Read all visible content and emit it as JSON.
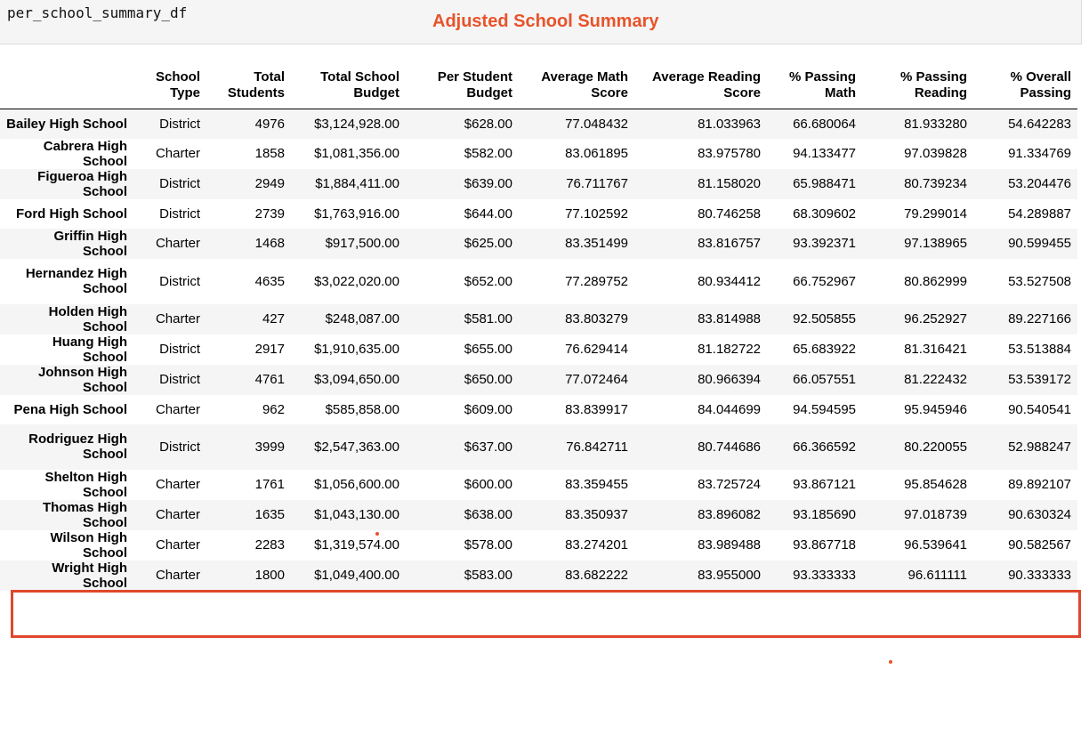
{
  "code": "per_school_summary_df",
  "annotation_title": "Adjusted School Summary",
  "accent_color": "#e0472c",
  "table": {
    "columns": [
      "",
      "School Type",
      "Total Students",
      "Total School Budget",
      "Per Student Budget",
      "Average Math Score",
      "Average Reading Score",
      "% Passing Math",
      "% Passing Reading",
      "% Overall Passing"
    ],
    "rows": [
      {
        "name": "Bailey High School",
        "cells": [
          "District",
          "4976",
          "$3,124,928.00",
          "$628.00",
          "77.048432",
          "81.033963",
          "66.680064",
          "81.933280",
          "54.642283"
        ]
      },
      {
        "name": "Cabrera High School",
        "cells": [
          "Charter",
          "1858",
          "$1,081,356.00",
          "$582.00",
          "83.061895",
          "83.975780",
          "94.133477",
          "97.039828",
          "91.334769"
        ]
      },
      {
        "name": "Figueroa High School",
        "cells": [
          "District",
          "2949",
          "$1,884,411.00",
          "$639.00",
          "76.711767",
          "81.158020",
          "65.988471",
          "80.739234",
          "53.204476"
        ]
      },
      {
        "name": "Ford High School",
        "cells": [
          "District",
          "2739",
          "$1,763,916.00",
          "$644.00",
          "77.102592",
          "80.746258",
          "68.309602",
          "79.299014",
          "54.289887"
        ]
      },
      {
        "name": "Griffin High School",
        "cells": [
          "Charter",
          "1468",
          "$917,500.00",
          "$625.00",
          "83.351499",
          "83.816757",
          "93.392371",
          "97.138965",
          "90.599455"
        ]
      },
      {
        "name": "Hernandez High School",
        "cells": [
          "District",
          "4635",
          "$3,022,020.00",
          "$652.00",
          "77.289752",
          "80.934412",
          "66.752967",
          "80.862999",
          "53.527508"
        ]
      },
      {
        "name": "Holden High School",
        "cells": [
          "Charter",
          "427",
          "$248,087.00",
          "$581.00",
          "83.803279",
          "83.814988",
          "92.505855",
          "96.252927",
          "89.227166"
        ]
      },
      {
        "name": "Huang High School",
        "cells": [
          "District",
          "2917",
          "$1,910,635.00",
          "$655.00",
          "76.629414",
          "81.182722",
          "65.683922",
          "81.316421",
          "53.513884"
        ]
      },
      {
        "name": "Johnson High School",
        "cells": [
          "District",
          "4761",
          "$3,094,650.00",
          "$650.00",
          "77.072464",
          "80.966394",
          "66.057551",
          "81.222432",
          "53.539172"
        ]
      },
      {
        "name": "Pena High School",
        "cells": [
          "Charter",
          "962",
          "$585,858.00",
          "$609.00",
          "83.839917",
          "84.044699",
          "94.594595",
          "95.945946",
          "90.540541"
        ]
      },
      {
        "name": "Rodriguez High School",
        "cells": [
          "District",
          "3999",
          "$2,547,363.00",
          "$637.00",
          "76.842711",
          "80.744686",
          "66.366592",
          "80.220055",
          "52.988247"
        ]
      },
      {
        "name": "Shelton High School",
        "cells": [
          "Charter",
          "1761",
          "$1,056,600.00",
          "$600.00",
          "83.359455",
          "83.725724",
          "93.867121",
          "95.854628",
          "89.892107"
        ]
      },
      {
        "name": "Thomas High School",
        "cells": [
          "Charter",
          "1635",
          "$1,043,130.00",
          "$638.00",
          "83.350937",
          "83.896082",
          "93.185690",
          "97.018739",
          "90.630324"
        ]
      },
      {
        "name": "Wilson High School",
        "cells": [
          "Charter",
          "2283",
          "$1,319,574.00",
          "$578.00",
          "83.274201",
          "83.989488",
          "93.867718",
          "96.539641",
          "90.582567"
        ]
      },
      {
        "name": "Wright High School",
        "cells": [
          "Charter",
          "1800",
          "$1,049,400.00",
          "$583.00",
          "83.682222",
          "83.955000",
          "93.333333",
          "96.611111",
          "90.333333"
        ]
      }
    ]
  }
}
